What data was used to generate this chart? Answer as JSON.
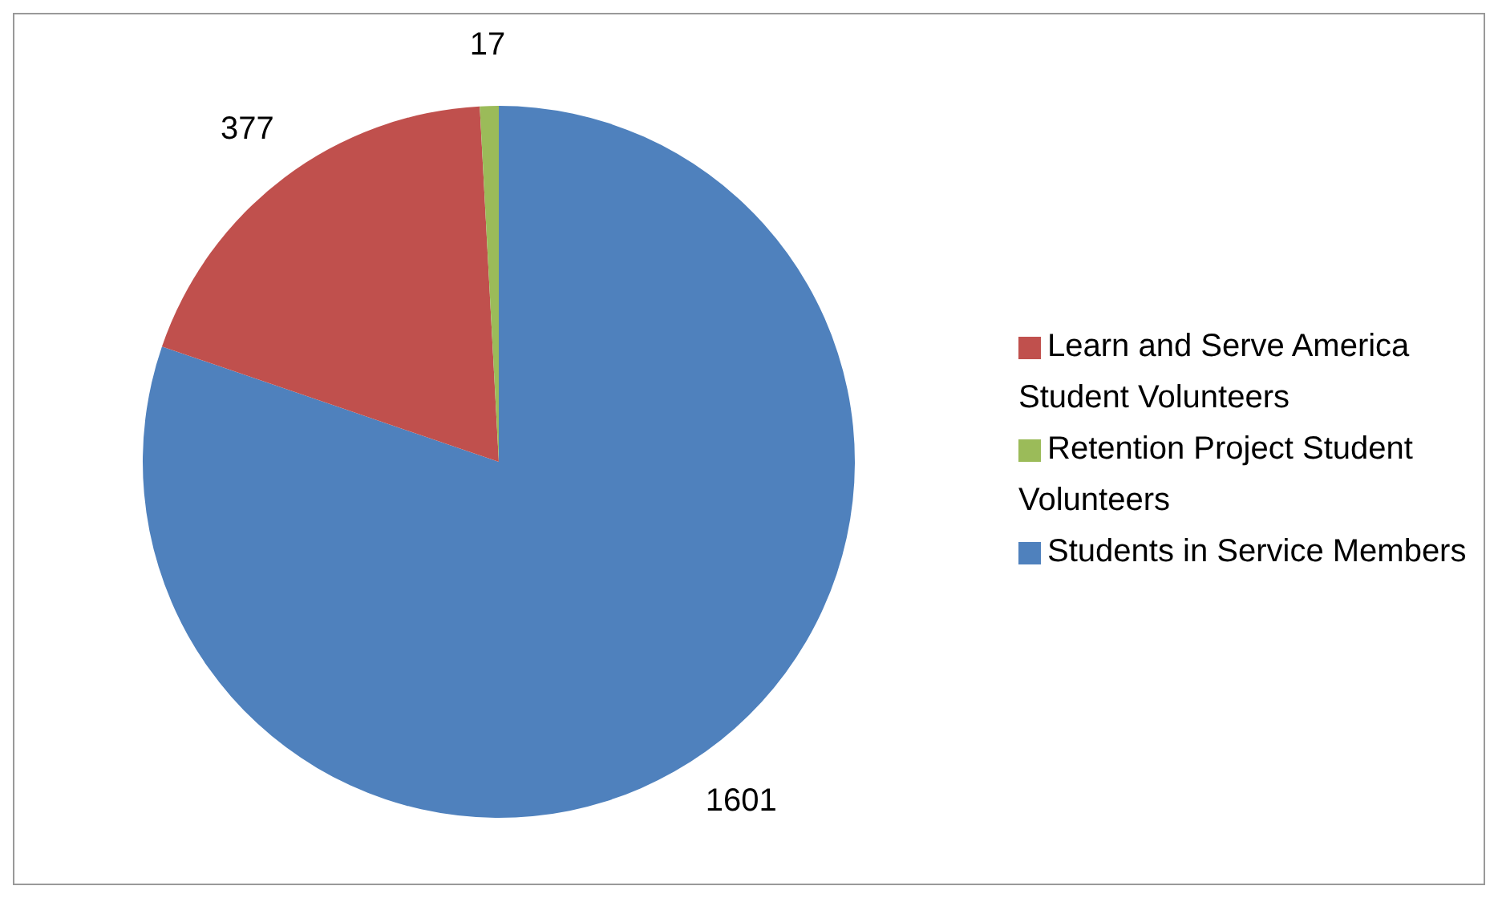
{
  "chart_data": {
    "type": "pie",
    "categories": [
      "Students in Service Members",
      "Learn and Serve America Student Volunteers",
      "Retention Project Student Volunteers"
    ],
    "values": [
      1601,
      377,
      17
    ],
    "colors": [
      "#4f81bd",
      "#c0504d",
      "#9bbb59"
    ],
    "data_labels": true,
    "legend": "right"
  }
}
